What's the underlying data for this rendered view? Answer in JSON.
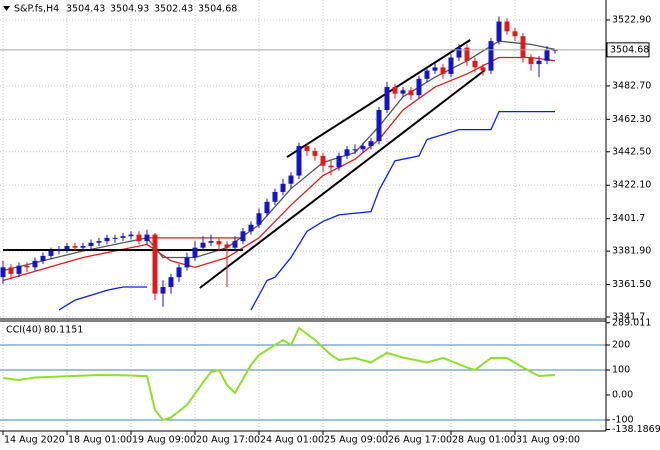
{
  "chart_data": [
    {
      "type": "candlestick",
      "title": "S&P.fs,H4",
      "categories": [
        "14 Aug 2020",
        null,
        null,
        null,
        null,
        null,
        null,
        null,
        "18 Aug 01:00",
        null,
        null,
        null,
        null,
        null,
        null,
        null,
        "19 Aug 09:00",
        null,
        null,
        null,
        null,
        null,
        null,
        null,
        "20 Aug 17:00",
        null,
        null,
        null,
        null,
        null,
        null,
        null,
        "24 Aug 01:00",
        null,
        null,
        null,
        null,
        null,
        null,
        null,
        "25 Aug 09:00",
        null,
        null,
        null,
        null,
        null,
        null,
        null,
        "26 Aug 17:00",
        null,
        null,
        null,
        null,
        null,
        null,
        null,
        "28 Aug 01:00",
        null,
        null,
        null,
        null,
        null,
        null,
        null,
        "31 Aug 09:00",
        null,
        null,
        null,
        null,
        null
      ],
      "candles": [
        [
          3366,
          3376,
          3362,
          3372
        ],
        [
          3372,
          3374,
          3365,
          3368
        ],
        [
          3368,
          3375,
          3366,
          3373
        ],
        [
          3373,
          3375,
          3369,
          3372
        ],
        [
          3372,
          3378,
          3370,
          3376
        ],
        [
          3376,
          3381,
          3374,
          3379
        ],
        [
          3379,
          3384,
          3377,
          3382
        ],
        [
          3382,
          3385,
          3380,
          3383
        ],
        [
          3383,
          3387,
          3381,
          3385
        ],
        [
          3385,
          3387,
          3382,
          3384
        ],
        [
          3384,
          3387,
          3382,
          3385
        ],
        [
          3385,
          3389,
          3383,
          3387
        ],
        [
          3387,
          3390,
          3385,
          3388
        ],
        [
          3388,
          3392,
          3386,
          3390
        ],
        [
          3390,
          3392,
          3387,
          3390
        ],
        [
          3390,
          3393,
          3388,
          3391
        ],
        [
          3391,
          3394,
          3389,
          3392
        ],
        [
          3392,
          3394,
          3386,
          3388
        ],
        [
          3388,
          3395,
          3386,
          3392
        ],
        [
          3392,
          3393,
          3352,
          3356
        ],
        [
          3356,
          3364,
          3348,
          3360
        ],
        [
          3360,
          3368,
          3356,
          3366
        ],
        [
          3366,
          3374,
          3363,
          3372
        ],
        [
          3372,
          3381,
          3370,
          3378
        ],
        [
          3378,
          3388,
          3376,
          3384
        ],
        [
          3384,
          3391,
          3382,
          3387
        ],
        [
          3387,
          3392,
          3385,
          3388
        ],
        [
          3388,
          3390,
          3382,
          3386
        ],
        [
          3386,
          3388,
          3360,
          3384
        ],
        [
          3384,
          3391,
          3382,
          3388
        ],
        [
          3388,
          3396,
          3386,
          3394
        ],
        [
          3394,
          3400,
          3392,
          3398
        ],
        [
          3398,
          3408,
          3396,
          3405
        ],
        [
          3405,
          3414,
          3403,
          3412
        ],
        [
          3412,
          3420,
          3410,
          3418
        ],
        [
          3418,
          3426,
          3416,
          3423
        ],
        [
          3423,
          3430,
          3420,
          3428
        ],
        [
          3428,
          3448,
          3426,
          3446
        ],
        [
          3446,
          3448,
          3440,
          3443
        ],
        [
          3443,
          3445,
          3437,
          3440
        ],
        [
          3440,
          3442,
          3430,
          3434
        ],
        [
          3434,
          3437,
          3428,
          3433
        ],
        [
          3433,
          3442,
          3431,
          3440
        ],
        [
          3440,
          3446,
          3438,
          3444
        ],
        [
          3444,
          3447,
          3441,
          3444
        ],
        [
          3444,
          3448,
          3442,
          3446
        ],
        [
          3446,
          3451,
          3444,
          3449
        ],
        [
          3449,
          3470,
          3447,
          3468
        ],
        [
          3468,
          3485,
          3466,
          3482
        ],
        [
          3482,
          3484,
          3475,
          3478
        ],
        [
          3478,
          3482,
          3476,
          3480
        ],
        [
          3480,
          3482,
          3474,
          3477
        ],
        [
          3477,
          3489,
          3475,
          3487
        ],
        [
          3487,
          3494,
          3485,
          3492
        ],
        [
          3492,
          3497,
          3490,
          3494
        ],
        [
          3494,
          3496,
          3487,
          3490
        ],
        [
          3490,
          3502,
          3488,
          3500
        ],
        [
          3500,
          3508,
          3498,
          3506
        ],
        [
          3506,
          3508,
          3495,
          3498
        ],
        [
          3498,
          3500,
          3491,
          3494
        ],
        [
          3494,
          3496,
          3489,
          3492
        ],
        [
          3492,
          3512,
          3490,
          3510
        ],
        [
          3510,
          3525,
          3508,
          3522
        ],
        [
          3522,
          3524,
          3514,
          3516
        ],
        [
          3516,
          3518,
          3510,
          3513
        ],
        [
          3513,
          3515,
          3497,
          3500
        ],
        [
          3500,
          3502,
          3492,
          3496
        ],
        [
          3496,
          3501,
          3488,
          3498
        ],
        [
          3498,
          3507,
          3496,
          3504.43
        ],
        [
          3504.43,
          3504.93,
          3502.43,
          3504.68
        ]
      ],
      "up_color": "#1414c8",
      "down_color": "#e01a1a",
      "ylim": [
        3341.1,
        3535.1
      ],
      "yticks": [
        {
          "value": 3522.9,
          "label": "3522.90"
        },
        {
          "value": 3482.7,
          "label": "3482.70"
        },
        {
          "value": 3462.3,
          "label": "3462.30"
        },
        {
          "value": 3442.5,
          "label": "3442.50"
        },
        {
          "value": 3422.1,
          "label": "3422.10"
        },
        3401.7,
        {
          "value": 3381.9,
          "label": "3381.90"
        },
        {
          "value": 3361.5,
          "label": "3361.50"
        },
        3341.7
      ],
      "grid": true,
      "lines": [
        {
          "color": "#0a1ee6",
          "x": [
            7,
            9,
            11,
            13,
            15,
            18
          ],
          "values": [
            3346,
            3352,
            3355,
            3358,
            3360,
            3360
          ]
        },
        {
          "color": "#0a1ee6",
          "x": [
            31,
            33,
            34,
            36,
            37,
            38,
            40,
            42,
            46,
            47,
            49,
            52,
            53,
            57,
            61,
            62,
            69
          ],
          "values": [
            3346,
            3364,
            3366,
            3378,
            3386,
            3394,
            3400,
            3404,
            3406,
            3419,
            3437,
            3440,
            3450,
            3456,
            3456,
            3467,
            3467
          ]
        },
        {
          "color": "#e01a1a",
          "x": [
            0,
            10,
            18,
            21,
            24,
            28,
            32,
            36,
            40,
            44,
            47,
            50,
            54,
            58,
            62,
            66,
            69
          ],
          "values": [
            3364,
            3378,
            3386,
            3376,
            3372,
            3378,
            3390,
            3410,
            3428,
            3438,
            3450,
            3468,
            3482,
            3490,
            3500,
            3500,
            3498
          ]
        },
        {
          "color": "#e01a1a",
          "x": [
            18,
            30
          ],
          "values": [
            3390,
            3390
          ]
        },
        {
          "color": "#555555",
          "x": [
            0,
            10,
            18,
            20,
            24,
            28,
            32,
            36,
            40,
            44,
            47,
            50,
            54,
            58,
            62,
            66,
            69
          ],
          "values": [
            3370,
            3382,
            3390,
            3378,
            3378,
            3384,
            3398,
            3420,
            3436,
            3442,
            3458,
            3476,
            3488,
            3498,
            3510,
            3508,
            3505
          ]
        },
        {
          "color": "#000000",
          "x": [
            0,
            30
          ],
          "values": [
            3382.6,
            3382.6
          ]
        },
        {
          "color": "#000000",
          "x": [
            24.6,
            60.25
          ],
          "values": [
            3359.4,
            3492.4
          ]
        },
        {
          "color": "#000000",
          "x": [
            35.5,
            58.4
          ],
          "values": [
            3439.3,
            3510.7
          ]
        }
      ]
    },
    {
      "type": "line",
      "title": "CCI(40)",
      "color": "#8ee02a",
      "x": [
        0,
        2,
        4,
        8,
        12,
        16,
        18,
        19,
        20,
        21,
        23,
        25,
        26,
        27,
        28,
        29,
        31,
        32,
        34,
        35,
        36,
        37,
        39,
        41,
        42,
        44,
        46,
        47,
        48,
        50,
        53,
        55,
        58,
        59,
        61,
        63,
        65,
        67,
        69
      ],
      "values": [
        68,
        60,
        70,
        75,
        80,
        78,
        75,
        -60,
        -100,
        -90,
        -40,
        50,
        92,
        100,
        40,
        8,
        120,
        160,
        200,
        220,
        200,
        268,
        220,
        160,
        140,
        148,
        130,
        150,
        168,
        150,
        130,
        148,
        110,
        100,
        148,
        148,
        110,
        76,
        80.1151
      ],
      "levels": [
        200,
        100,
        -100
      ],
      "level_color": "#4682b4",
      "ylim": [
        -138.1869,
        289.011
      ],
      "yticks": [
        289.011,
        200,
        100,
        {
          "value": 0,
          "label": "0.00"
        },
        -100,
        -138.1869
      ]
    }
  ]
}
